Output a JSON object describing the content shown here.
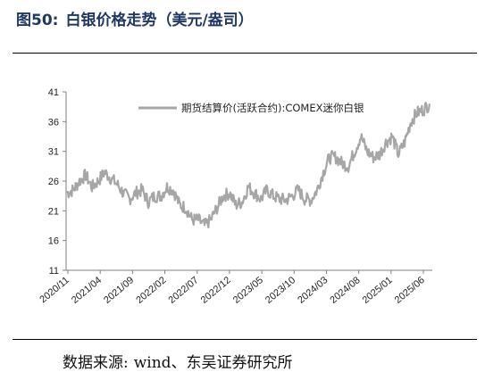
{
  "figure": {
    "number": "图50:",
    "title": "白银价格走势（美元/盎司）"
  },
  "source": {
    "label": "数据来源:",
    "text": "wind、东吴证券研究所"
  },
  "chart_data": {
    "type": "line",
    "ylim": [
      11,
      41
    ],
    "yticks": [
      "11",
      "16",
      "21",
      "26",
      "31",
      "36",
      "41"
    ],
    "x_tick_labels": [
      "2020/11",
      "2021/04",
      "2021/09",
      "2022/02",
      "2022/07",
      "2022/12",
      "2023/05",
      "2023/10",
      "2024/03",
      "2024/08",
      "2025/01",
      "2025/06"
    ],
    "legend_position": "top-right",
    "grid": false,
    "series": [
      {
        "name": "期货结算价(活跃合约):COMEX迷你白银",
        "color": "#a6a6a6",
        "x": [
          "2020/11",
          "2020/12",
          "2021/01",
          "2021/02",
          "2021/03",
          "2021/04",
          "2021/05",
          "2021/06",
          "2021/07",
          "2021/08",
          "2021/09",
          "2021/10",
          "2021/11",
          "2021/12",
          "2022/01",
          "2022/02",
          "2022/03",
          "2022/04",
          "2022/05",
          "2022/06",
          "2022/07",
          "2022/08",
          "2022/09",
          "2022/10",
          "2022/11",
          "2022/12",
          "2023/01",
          "2023/02",
          "2023/03",
          "2023/04",
          "2023/05",
          "2023/06",
          "2023/07",
          "2023/08",
          "2023/09",
          "2023/10",
          "2023/11",
          "2023/12",
          "2024/01",
          "2024/02",
          "2024/03",
          "2024/04",
          "2024/05",
          "2024/06",
          "2024/07",
          "2024/08",
          "2024/09",
          "2024/10",
          "2024/11",
          "2024/12",
          "2025/01",
          "2025/02",
          "2025/03",
          "2025/04",
          "2025/05",
          "2025/06",
          "2025/07",
          "2025/08",
          "2025/09"
        ],
        "values": [
          24.0,
          24.5,
          26.0,
          27.0,
          25.0,
          26.0,
          27.5,
          26.5,
          25.5,
          24.0,
          23.0,
          24.0,
          24.5,
          22.5,
          23.5,
          23.5,
          25.0,
          24.5,
          22.0,
          21.5,
          19.5,
          19.5,
          18.5,
          19.5,
          21.5,
          23.5,
          24.0,
          22.0,
          22.5,
          25.0,
          24.0,
          23.0,
          24.5,
          23.5,
          23.0,
          22.8,
          23.5,
          24.5,
          23.0,
          22.8,
          24.5,
          27.5,
          30.0,
          30.0,
          29.0,
          28.5,
          31.0,
          33.5,
          31.0,
          30.0,
          30.5,
          32.5,
          33.5,
          30.5,
          32.5,
          36.0,
          37.5,
          38.0,
          39.0
        ]
      }
    ]
  }
}
